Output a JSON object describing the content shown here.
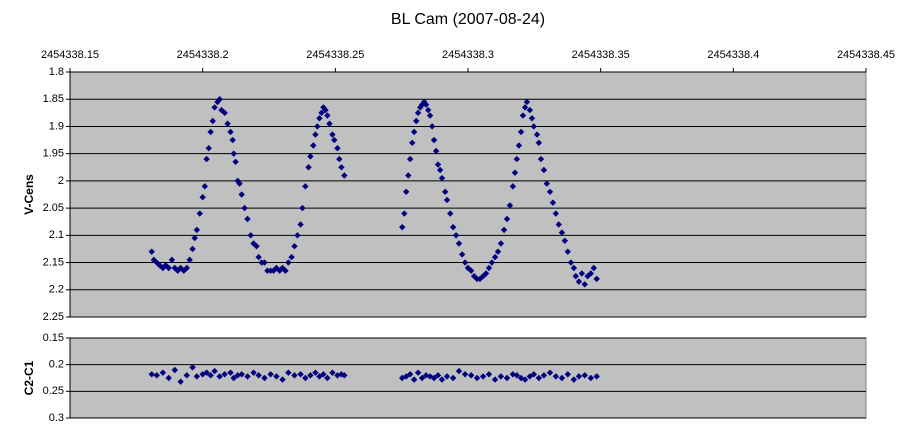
{
  "chart_data": [
    {
      "type": "scatter",
      "title": "BL Cam (2007-08-24)",
      "y_label": "V-Cens",
      "color": "#000080",
      "background": "#c0c0c0",
      "grid": true,
      "y_reversed": true,
      "xlim": [
        2454338.15,
        2454338.45
      ],
      "xticks": [
        2454338.15,
        2454338.2,
        2454338.25,
        2454338.3,
        2454338.35,
        2454338.4,
        2454338.45
      ],
      "ylim": [
        1.8,
        2.25
      ],
      "yticks": [
        1.8,
        1.85,
        1.9,
        1.95,
        2,
        2.05,
        2.1,
        2.15,
        2.2,
        2.25
      ],
      "x": [
        2454338.1808,
        2454338.1816,
        2454338.1827,
        2454338.1838,
        2454338.185,
        2454338.1861,
        2454338.1872,
        2454338.1884,
        2454338.1895,
        2454338.1906,
        2454338.1917,
        2454338.1929,
        2454338.194,
        2454338.1951,
        2454338.1962,
        2454338.197,
        2454338.1978,
        2454338.1989,
        2454338.2,
        2454338.2008,
        2454338.2015,
        2454338.2023,
        2454338.203,
        2454338.2038,
        2454338.2045,
        2454338.2056,
        2454338.2064,
        2454338.2071,
        2454338.2083,
        2454338.2094,
        2454338.2105,
        2454338.2113,
        2454338.2117,
        2454338.2124,
        2454338.2132,
        2454338.2139,
        2454338.2147,
        2454338.2158,
        2454338.2169,
        2454338.2181,
        2454338.2192,
        2454338.2203,
        2454338.2211,
        2454338.2222,
        2454338.2233,
        2454338.2244,
        2454338.2256,
        2454338.2267,
        2454338.2278,
        2454338.229,
        2454338.2301,
        2454338.2312,
        2454338.2323,
        2454338.2335,
        2454338.2346,
        2454338.2357,
        2454338.2369,
        2454338.2376,
        2454338.2387,
        2454338.2399,
        2454338.2406,
        2454338.2417,
        2454338.2425,
        2454338.2432,
        2454338.244,
        2454338.2448,
        2454338.2455,
        2454338.2463,
        2454338.247,
        2454338.2478,
        2454338.2489,
        2454338.2496,
        2454338.2508,
        2454338.2515,
        2454338.2523,
        2454338.2534,
        2454338.2752,
        2454338.276,
        2454338.2767,
        2454338.2775,
        2454338.2782,
        2454338.279,
        2454338.2797,
        2454338.2805,
        2454338.2812,
        2454338.282,
        2454338.2827,
        2454338.2835,
        2454338.2842,
        2454338.285,
        2454338.2857,
        2454338.2865,
        2454338.2872,
        2454338.288,
        2454338.2887,
        2454338.2895,
        2454338.2902,
        2454338.2914,
        2454338.2921,
        2454338.2933,
        2454338.2944,
        2454338.2955,
        2454338.2966,
        2454338.2978,
        2454338.2989,
        2454338.3,
        2454338.3012,
        2454338.3023,
        2454338.3034,
        2454338.3045,
        2454338.3057,
        2454338.3068,
        2454338.3079,
        2454338.309,
        2454338.3102,
        2454338.3113,
        2454338.3124,
        2454338.3136,
        2454338.3147,
        2454338.3158,
        2454338.3169,
        2454338.3177,
        2454338.3184,
        2454338.3192,
        2454338.32,
        2454338.3207,
        2454338.3215,
        2454338.3222,
        2454338.3233,
        2454338.3241,
        2454338.3248,
        2454338.326,
        2454338.3267,
        2454338.3275,
        2454338.3286,
        2454338.3297,
        2454338.3309,
        2454338.332,
        2454338.3331,
        2454338.3342,
        2454338.3354,
        2454338.3365,
        2454338.3376,
        2454338.3388,
        2454338.3399,
        2454338.3406,
        2454338.3418,
        2454338.3429,
        2454338.344,
        2454338.3451,
        2454338.3463,
        2454338.3474,
        2454338.3485
      ],
      "values": [
        2.13,
        2.145,
        2.15,
        2.155,
        2.16,
        2.155,
        2.16,
        2.145,
        2.16,
        2.165,
        2.16,
        2.165,
        2.16,
        2.145,
        2.125,
        2.105,
        2.09,
        2.06,
        2.03,
        2.01,
        1.96,
        1.94,
        1.91,
        1.89,
        1.865,
        1.855,
        1.85,
        1.87,
        1.875,
        1.895,
        1.91,
        1.925,
        1.95,
        1.965,
        2.0,
        2.005,
        2.025,
        2.05,
        2.07,
        2.1,
        2.115,
        2.12,
        2.14,
        2.15,
        2.15,
        2.165,
        2.165,
        2.165,
        2.16,
        2.165,
        2.16,
        2.165,
        2.15,
        2.14,
        2.12,
        2.1,
        2.08,
        2.05,
        2.01,
        1.975,
        1.955,
        1.935,
        1.915,
        1.9,
        1.885,
        1.875,
        1.865,
        1.87,
        1.88,
        1.895,
        1.915,
        1.925,
        1.94,
        1.96,
        1.975,
        1.99,
        2.085,
        2.06,
        2.02,
        1.99,
        1.96,
        1.93,
        1.91,
        1.89,
        1.875,
        1.865,
        1.86,
        1.855,
        1.86,
        1.87,
        1.88,
        1.9,
        1.925,
        1.945,
        1.97,
        1.98,
        1.995,
        2.02,
        2.035,
        2.06,
        2.085,
        2.1,
        2.115,
        2.135,
        2.15,
        2.16,
        2.165,
        2.175,
        2.18,
        2.18,
        2.175,
        2.17,
        2.16,
        2.15,
        2.14,
        2.13,
        2.115,
        2.09,
        2.07,
        2.045,
        2.01,
        1.985,
        1.96,
        1.935,
        1.91,
        1.88,
        1.865,
        1.855,
        1.87,
        1.885,
        1.9,
        1.915,
        1.93,
        1.96,
        1.98,
        2.005,
        2.02,
        2.04,
        2.06,
        2.08,
        2.095,
        2.11,
        2.13,
        2.15,
        2.16,
        2.175,
        2.185,
        2.17,
        2.19,
        2.175,
        2.17,
        2.16,
        2.18
      ]
    },
    {
      "type": "scatter",
      "y_label": "C2-C1",
      "color": "#000080",
      "background": "#c0c0c0",
      "grid": true,
      "y_reversed": true,
      "xlim": [
        2454338.15,
        2454338.45
      ],
      "ylim": [
        0.15,
        0.3
      ],
      "yticks": [
        0.15,
        0.2,
        0.25,
        0.3
      ],
      "x": [
        2454338.1808,
        2454338.1827,
        2454338.185,
        2454338.1872,
        2454338.1895,
        2454338.1917,
        2454338.194,
        2454338.1962,
        2454338.1978,
        2454338.2,
        2454338.2015,
        2454338.203,
        2454338.2045,
        2454338.2064,
        2454338.2083,
        2454338.2105,
        2454338.2117,
        2454338.2132,
        2454338.2147,
        2454338.2169,
        2454338.2192,
        2454338.2211,
        2454338.2233,
        2454338.2256,
        2454338.2278,
        2454338.2301,
        2454338.2323,
        2454338.2346,
        2454338.2369,
        2454338.2387,
        2454338.2406,
        2454338.2425,
        2454338.244,
        2454338.2455,
        2454338.247,
        2454338.2489,
        2454338.2508,
        2454338.2523,
        2454338.2534,
        2454338.2752,
        2454338.2767,
        2454338.2782,
        2454338.2797,
        2454338.2812,
        2454338.2827,
        2454338.2842,
        2454338.2857,
        2454338.2872,
        2454338.2887,
        2454338.2902,
        2454338.2921,
        2454338.2944,
        2454338.2966,
        2454338.2989,
        2454338.3012,
        2454338.3034,
        2454338.3057,
        2454338.3079,
        2454338.3102,
        2454338.3124,
        2454338.3147,
        2454338.3169,
        2454338.3184,
        2454338.32,
        2454338.3215,
        2454338.3233,
        2454338.3248,
        2454338.3267,
        2454338.3286,
        2454338.3309,
        2454338.3331,
        2454338.3354,
        2454338.3376,
        2454338.3399,
        2454338.3418,
        2454338.344,
        2454338.3463,
        2454338.3485
      ],
      "values": [
        0.218,
        0.22,
        0.215,
        0.225,
        0.21,
        0.232,
        0.22,
        0.205,
        0.222,
        0.218,
        0.215,
        0.22,
        0.212,
        0.222,
        0.218,
        0.215,
        0.225,
        0.22,
        0.218,
        0.222,
        0.215,
        0.22,
        0.225,
        0.218,
        0.222,
        0.228,
        0.215,
        0.22,
        0.218,
        0.225,
        0.22,
        0.215,
        0.222,
        0.218,
        0.225,
        0.215,
        0.22,
        0.218,
        0.22,
        0.225,
        0.222,
        0.218,
        0.228,
        0.215,
        0.225,
        0.22,
        0.222,
        0.225,
        0.22,
        0.228,
        0.222,
        0.225,
        0.212,
        0.218,
        0.22,
        0.225,
        0.222,
        0.218,
        0.228,
        0.222,
        0.225,
        0.218,
        0.22,
        0.225,
        0.228,
        0.222,
        0.218,
        0.225,
        0.22,
        0.215,
        0.222,
        0.225,
        0.218,
        0.228,
        0.222,
        0.22,
        0.225,
        0.222
      ]
    }
  ]
}
